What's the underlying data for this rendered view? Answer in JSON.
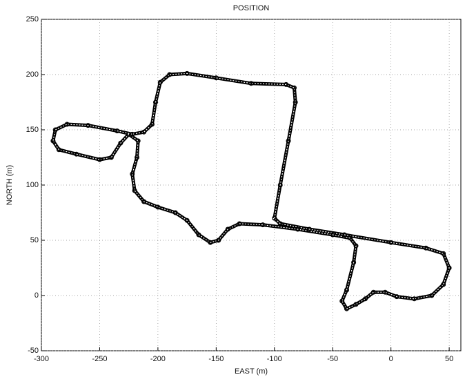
{
  "chart_data": {
    "type": "line",
    "title": "POSITION",
    "xlabel": "EAST (m)",
    "ylabel": "NORTH (m)",
    "x": [
      -100,
      -95,
      -88,
      -82,
      -83,
      -90,
      -120,
      -150,
      -175,
      -190,
      -198,
      -202,
      -205,
      -212,
      -222,
      -235,
      -260,
      -278,
      -288,
      -290,
      -285,
      -270,
      -250,
      -240,
      -232,
      -225,
      -217,
      -218,
      -222,
      -220,
      -212,
      -200,
      -185,
      -175,
      -165,
      -155,
      -148,
      -140,
      -130,
      -110,
      -80,
      -50,
      -35,
      -30,
      -32,
      -38,
      -42,
      -38,
      -30,
      -22,
      -15,
      -5,
      5,
      20,
      35,
      45,
      50,
      45,
      30,
      0,
      -40,
      -70,
      -95,
      -100
    ],
    "series": [
      {
        "name": "position",
        "color": "#000000",
        "values": [
          70,
          100,
          140,
          175,
          188,
          191,
          192,
          197,
          201,
          200,
          193,
          175,
          155,
          148,
          146,
          149,
          154,
          155,
          150,
          140,
          132,
          128,
          123,
          125,
          138,
          146,
          140,
          125,
          110,
          95,
          85,
          80,
          75,
          68,
          55,
          48,
          50,
          60,
          65,
          64,
          60,
          55,
          52,
          45,
          30,
          5,
          -5,
          -12,
          -8,
          -3,
          3,
          3,
          -1,
          -3,
          0,
          10,
          25,
          38,
          43,
          48,
          55,
          60,
          65,
          70
        ]
      }
    ],
    "xlim": [
      -300,
      60
    ],
    "ylim": [
      -50,
      250
    ],
    "xticks": [
      -300,
      -250,
      -200,
      -150,
      -100,
      -50,
      0,
      50
    ],
    "yticks": [
      -50,
      0,
      50,
      100,
      150,
      200,
      250
    ],
    "grid": true
  }
}
